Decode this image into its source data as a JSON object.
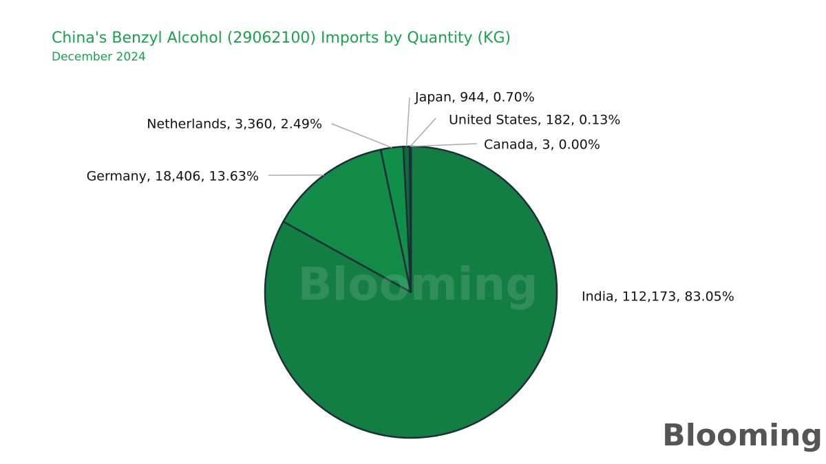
{
  "chart_data": {
    "type": "pie",
    "title": "China's Benzyl Alcohol (29062100) Imports by Quantity (KG)",
    "subtitle": "December 2024",
    "values": [
      112173,
      18406,
      3360,
      944,
      182,
      3
    ],
    "value_labels": [
      "India, 112,173, 83.05%",
      "Germany, 18,406, 13.63%",
      "Netherlands, 3,360, 2.49%",
      "Japan, 944, 0.70%",
      "United States, 182, 0.13%",
      "Canada, 3, 0.00%"
    ],
    "colors": [
      "#137e41",
      "#118b45",
      "#0f8f47",
      "#0c6b37",
      "#0a5530",
      "#0a4a2c"
    ],
    "watermark": "Blooming",
    "logo": "Blooming"
  }
}
